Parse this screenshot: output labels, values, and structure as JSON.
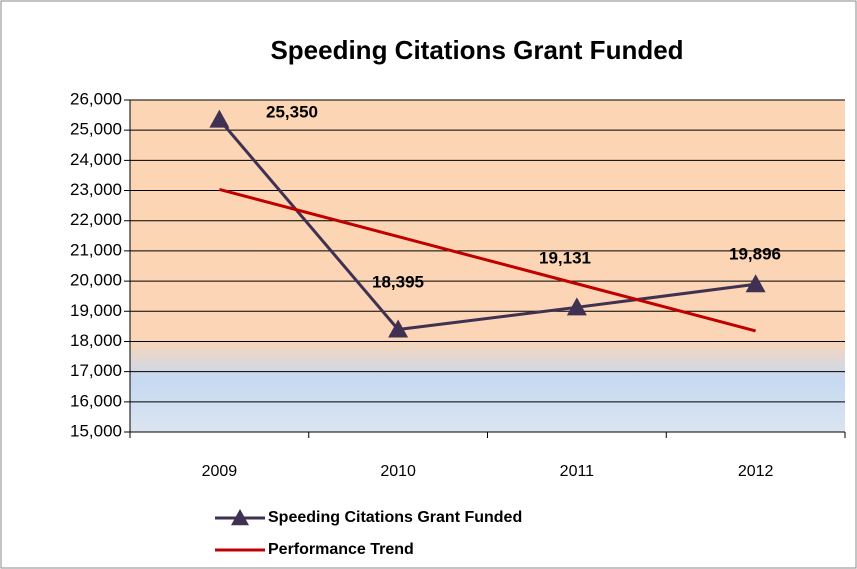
{
  "chart_data": {
    "type": "line",
    "title": "Speeding Citations Grant Funded",
    "categories": [
      "2009",
      "2010",
      "2011",
      "2012"
    ],
    "series": [
      {
        "name": "Speeding Citations Grant Funded",
        "color": "#403152",
        "marker": "triangle",
        "values": [
          25350,
          18395,
          19131,
          19896
        ],
        "value_labels": [
          "25,350",
          "18,395",
          "19,131",
          "19,896"
        ]
      },
      {
        "name": "Performance Trend",
        "color": "#c00000",
        "values": [
          23037,
          21474,
          19912,
          18349
        ]
      }
    ],
    "ylim": [
      15000,
      26000
    ],
    "yticks": [
      {
        "value": 15000,
        "label": "15,000"
      },
      {
        "value": 16000,
        "label": "16,000"
      },
      {
        "value": 17000,
        "label": "17,000"
      },
      {
        "value": 18000,
        "label": "18,000"
      },
      {
        "value": 19000,
        "label": "19,000"
      },
      {
        "value": 20000,
        "label": "20,000"
      },
      {
        "value": 21000,
        "label": "21,000"
      },
      {
        "value": 22000,
        "label": "22,000"
      },
      {
        "value": 23000,
        "label": "23,000"
      },
      {
        "value": 24000,
        "label": "24,000"
      },
      {
        "value": 25000,
        "label": "25,000"
      },
      {
        "value": 26000,
        "label": "26,000"
      }
    ],
    "grid": true,
    "legend": "bottom"
  }
}
